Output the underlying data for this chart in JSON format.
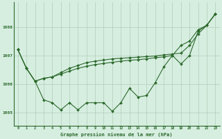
{
  "title": "Graphe pression niveau de la mer (hPa)",
  "background_color": "#d6eee0",
  "line_color": "#2d6a2d",
  "grid_color": "#b0ccb8",
  "xlim": [
    -0.5,
    23.5
  ],
  "ylim": [
    1004.55,
    1008.85
  ],
  "yticks": [
    1005,
    1006,
    1007,
    1008
  ],
  "xticks": [
    0,
    1,
    2,
    3,
    4,
    5,
    6,
    7,
    8,
    9,
    10,
    11,
    12,
    13,
    14,
    15,
    16,
    17,
    18,
    19,
    20,
    21,
    22,
    23
  ],
  "line1_x": [
    0,
    1,
    2,
    3,
    4,
    5,
    6,
    7,
    8,
    9,
    10,
    11,
    12,
    13,
    14,
    15,
    16,
    17,
    18,
    19,
    20,
    21,
    22,
    23
  ],
  "line1_y": [
    1007.2,
    1006.55,
    1006.1,
    1006.2,
    1006.25,
    1006.35,
    1006.45,
    1006.55,
    1006.62,
    1006.68,
    1006.72,
    1006.76,
    1006.8,
    1006.83,
    1006.85,
    1006.88,
    1006.92,
    1006.95,
    1007.0,
    1006.7,
    1007.0,
    1007.85,
    1008.05,
    1008.45
  ],
  "line2_x": [
    0,
    1,
    2,
    3,
    4,
    5,
    6,
    7,
    8,
    9,
    10,
    11,
    12,
    13,
    14,
    15,
    16,
    17,
    18,
    19,
    20,
    21,
    22,
    23
  ],
  "line2_y": [
    1007.2,
    1006.55,
    1006.1,
    1006.2,
    1006.25,
    1006.4,
    1006.55,
    1006.65,
    1006.75,
    1006.8,
    1006.84,
    1006.88,
    1006.9,
    1006.92,
    1006.94,
    1006.96,
    1006.98,
    1007.02,
    1007.05,
    1007.08,
    1007.35,
    1007.75,
    1008.05,
    1008.45
  ],
  "line3_x": [
    0,
    1,
    2,
    3,
    4,
    5,
    6,
    7,
    8,
    9,
    10,
    11,
    12,
    13,
    14,
    15,
    16,
    17,
    18,
    19,
    20,
    21,
    22,
    23
  ],
  "line3_y": [
    1007.2,
    1006.55,
    1006.1,
    1005.45,
    1005.35,
    1005.1,
    1005.35,
    1005.1,
    1005.35,
    1005.35,
    1005.35,
    1005.05,
    1005.35,
    1005.85,
    1005.55,
    1005.6,
    1006.05,
    1006.6,
    1007.0,
    1007.35,
    1007.5,
    1007.9,
    1008.05,
    1008.45
  ]
}
